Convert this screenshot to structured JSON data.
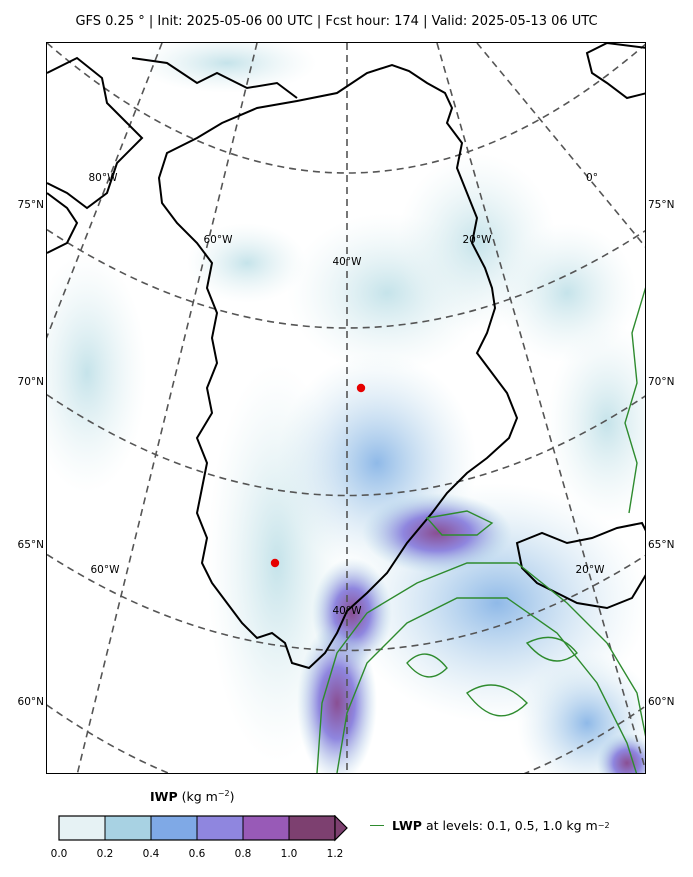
{
  "title": "GFS 0.25 ° | Init: 2025-05-06 00 UTC | Fcst hour: 174 | Valid: 2025-05-13 06 UTC",
  "lat_labels": [
    "75°N",
    "70°N",
    "65°N",
    "60°N"
  ],
  "lon_labels": {
    "top": [
      "80°W",
      "60°W",
      "40°W",
      "20°W",
      "0°"
    ],
    "bottom": [
      "60°W",
      "40°W",
      "20°W"
    ]
  },
  "colorbar": {
    "variable": "IWP",
    "units": "(kg m",
    "units_exp": "−2",
    "units_close": ")",
    "ticks": [
      "0.0",
      "0.2",
      "0.4",
      "0.6",
      "0.8",
      "1.0",
      "1.2"
    ],
    "colors": [
      "#e6f2f4",
      "#a8d2e3",
      "#7fa9e6",
      "#8f86df",
      "#985ab7",
      "#7d4070"
    ],
    "extend": "max"
  },
  "legend": {
    "name": "LWP",
    "text": "at levels: 0.1, 0.5, 1.0  kg m",
    "exp": "−2",
    "color": "#2e8b2e"
  },
  "points": [
    {
      "color": "#e60000"
    },
    {
      "color": "#e60000"
    }
  ]
}
